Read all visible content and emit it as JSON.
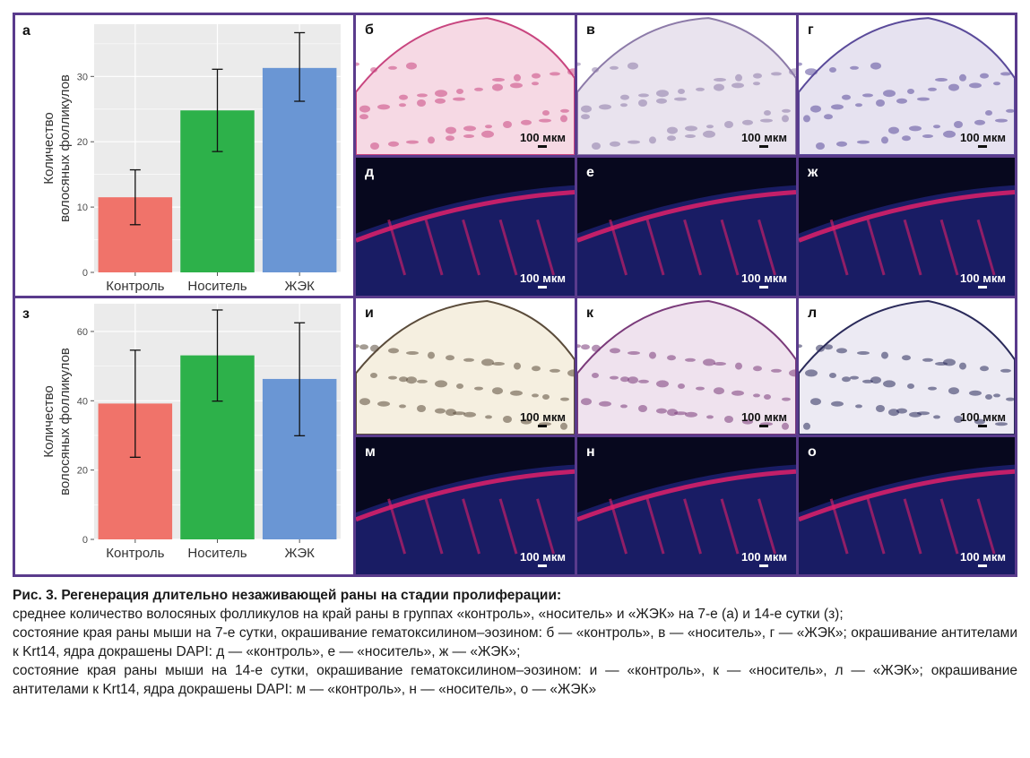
{
  "colors": {
    "frame": "#5a3b8c",
    "control": "#f0736a",
    "carrier": "#2db14a",
    "jek": "#6a96d4",
    "plot_bg": "#ebebeb",
    "he_stain": "#c76a9a",
    "dapi": "#1c1f6b",
    "krt14": "#e0206a"
  },
  "chart_data": [
    {
      "panel_letter": "а",
      "type": "bar",
      "categories": [
        "Контроль",
        "Носитель",
        "ЖЭК"
      ],
      "values": [
        11.5,
        24.8,
        31.3
      ],
      "error_low": [
        7.3,
        18.5,
        26.2
      ],
      "error_high": [
        15.7,
        31.1,
        36.7
      ],
      "ylabel_line1": "Количество",
      "ylabel_line2": "волосяных фолликулов",
      "ylim": [
        0,
        38
      ],
      "yticks": [
        0,
        10,
        20,
        30
      ],
      "grid": true
    },
    {
      "panel_letter": "з",
      "type": "bar",
      "categories": [
        "Контроль",
        "Носитель",
        "ЖЭК"
      ],
      "values": [
        39.2,
        53.1,
        46.3
      ],
      "error_low": [
        23.7,
        39.9,
        29.9
      ],
      "error_high": [
        54.6,
        66.2,
        62.5
      ],
      "ylabel_line1": "Количество",
      "ylabel_line2": "волосяных фолликулов",
      "ylim": [
        0,
        68
      ],
      "yticks": [
        0,
        20,
        40,
        60
      ],
      "grid": true
    }
  ],
  "micrographs": [
    {
      "letter": "б",
      "stain": "he",
      "scale_label": "100 мкм"
    },
    {
      "letter": "в",
      "stain": "he",
      "scale_label": "100 мкм"
    },
    {
      "letter": "г",
      "stain": "he",
      "scale_label": "100 мкм"
    },
    {
      "letter": "д",
      "stain": "fluor",
      "scale_label": "100 мкм"
    },
    {
      "letter": "е",
      "stain": "fluor",
      "scale_label": "100 мкм"
    },
    {
      "letter": "ж",
      "stain": "fluor",
      "scale_label": "100 мкм"
    },
    {
      "letter": "и",
      "stain": "he",
      "scale_label": "100 мкм"
    },
    {
      "letter": "к",
      "stain": "he",
      "scale_label": "100 мкм"
    },
    {
      "letter": "л",
      "stain": "he",
      "scale_label": "100 мкм"
    },
    {
      "letter": "м",
      "stain": "fluor",
      "scale_label": "100 мкм"
    },
    {
      "letter": "н",
      "stain": "fluor",
      "scale_label": "100 мкм"
    },
    {
      "letter": "о",
      "stain": "fluor",
      "scale_label": "100 мкм"
    }
  ],
  "caption": {
    "title": "Рис. 3. Регенерация длительно незаживающей раны на стадии пролиферации:",
    "line1": "среднее количество волосяных фолликулов на край раны в группах «контроль», «носитель» и «ЖЭК» на 7-е (а) и 14-е сутки (з);",
    "line2": "состояние края раны мыши на 7-е сутки, окрашивание гематоксилином–эозином: б — «контроль», в — «носитель», г — «ЖЭК»; окрашивание антителами к Krt14, ядра докрашены DAPI: д — «контроль», е — «носитель», ж — «ЖЭК»;",
    "line3": "состояние края раны мыши на 14-е сутки, окрашивание гематоксилином–эозином: и — «контроль», к — «носитель», л — «ЖЭК»; окрашивание антителами к Krt14, ядра докрашены DAPI: м — «контроль», н — «носитель», о — «ЖЭК»"
  }
}
